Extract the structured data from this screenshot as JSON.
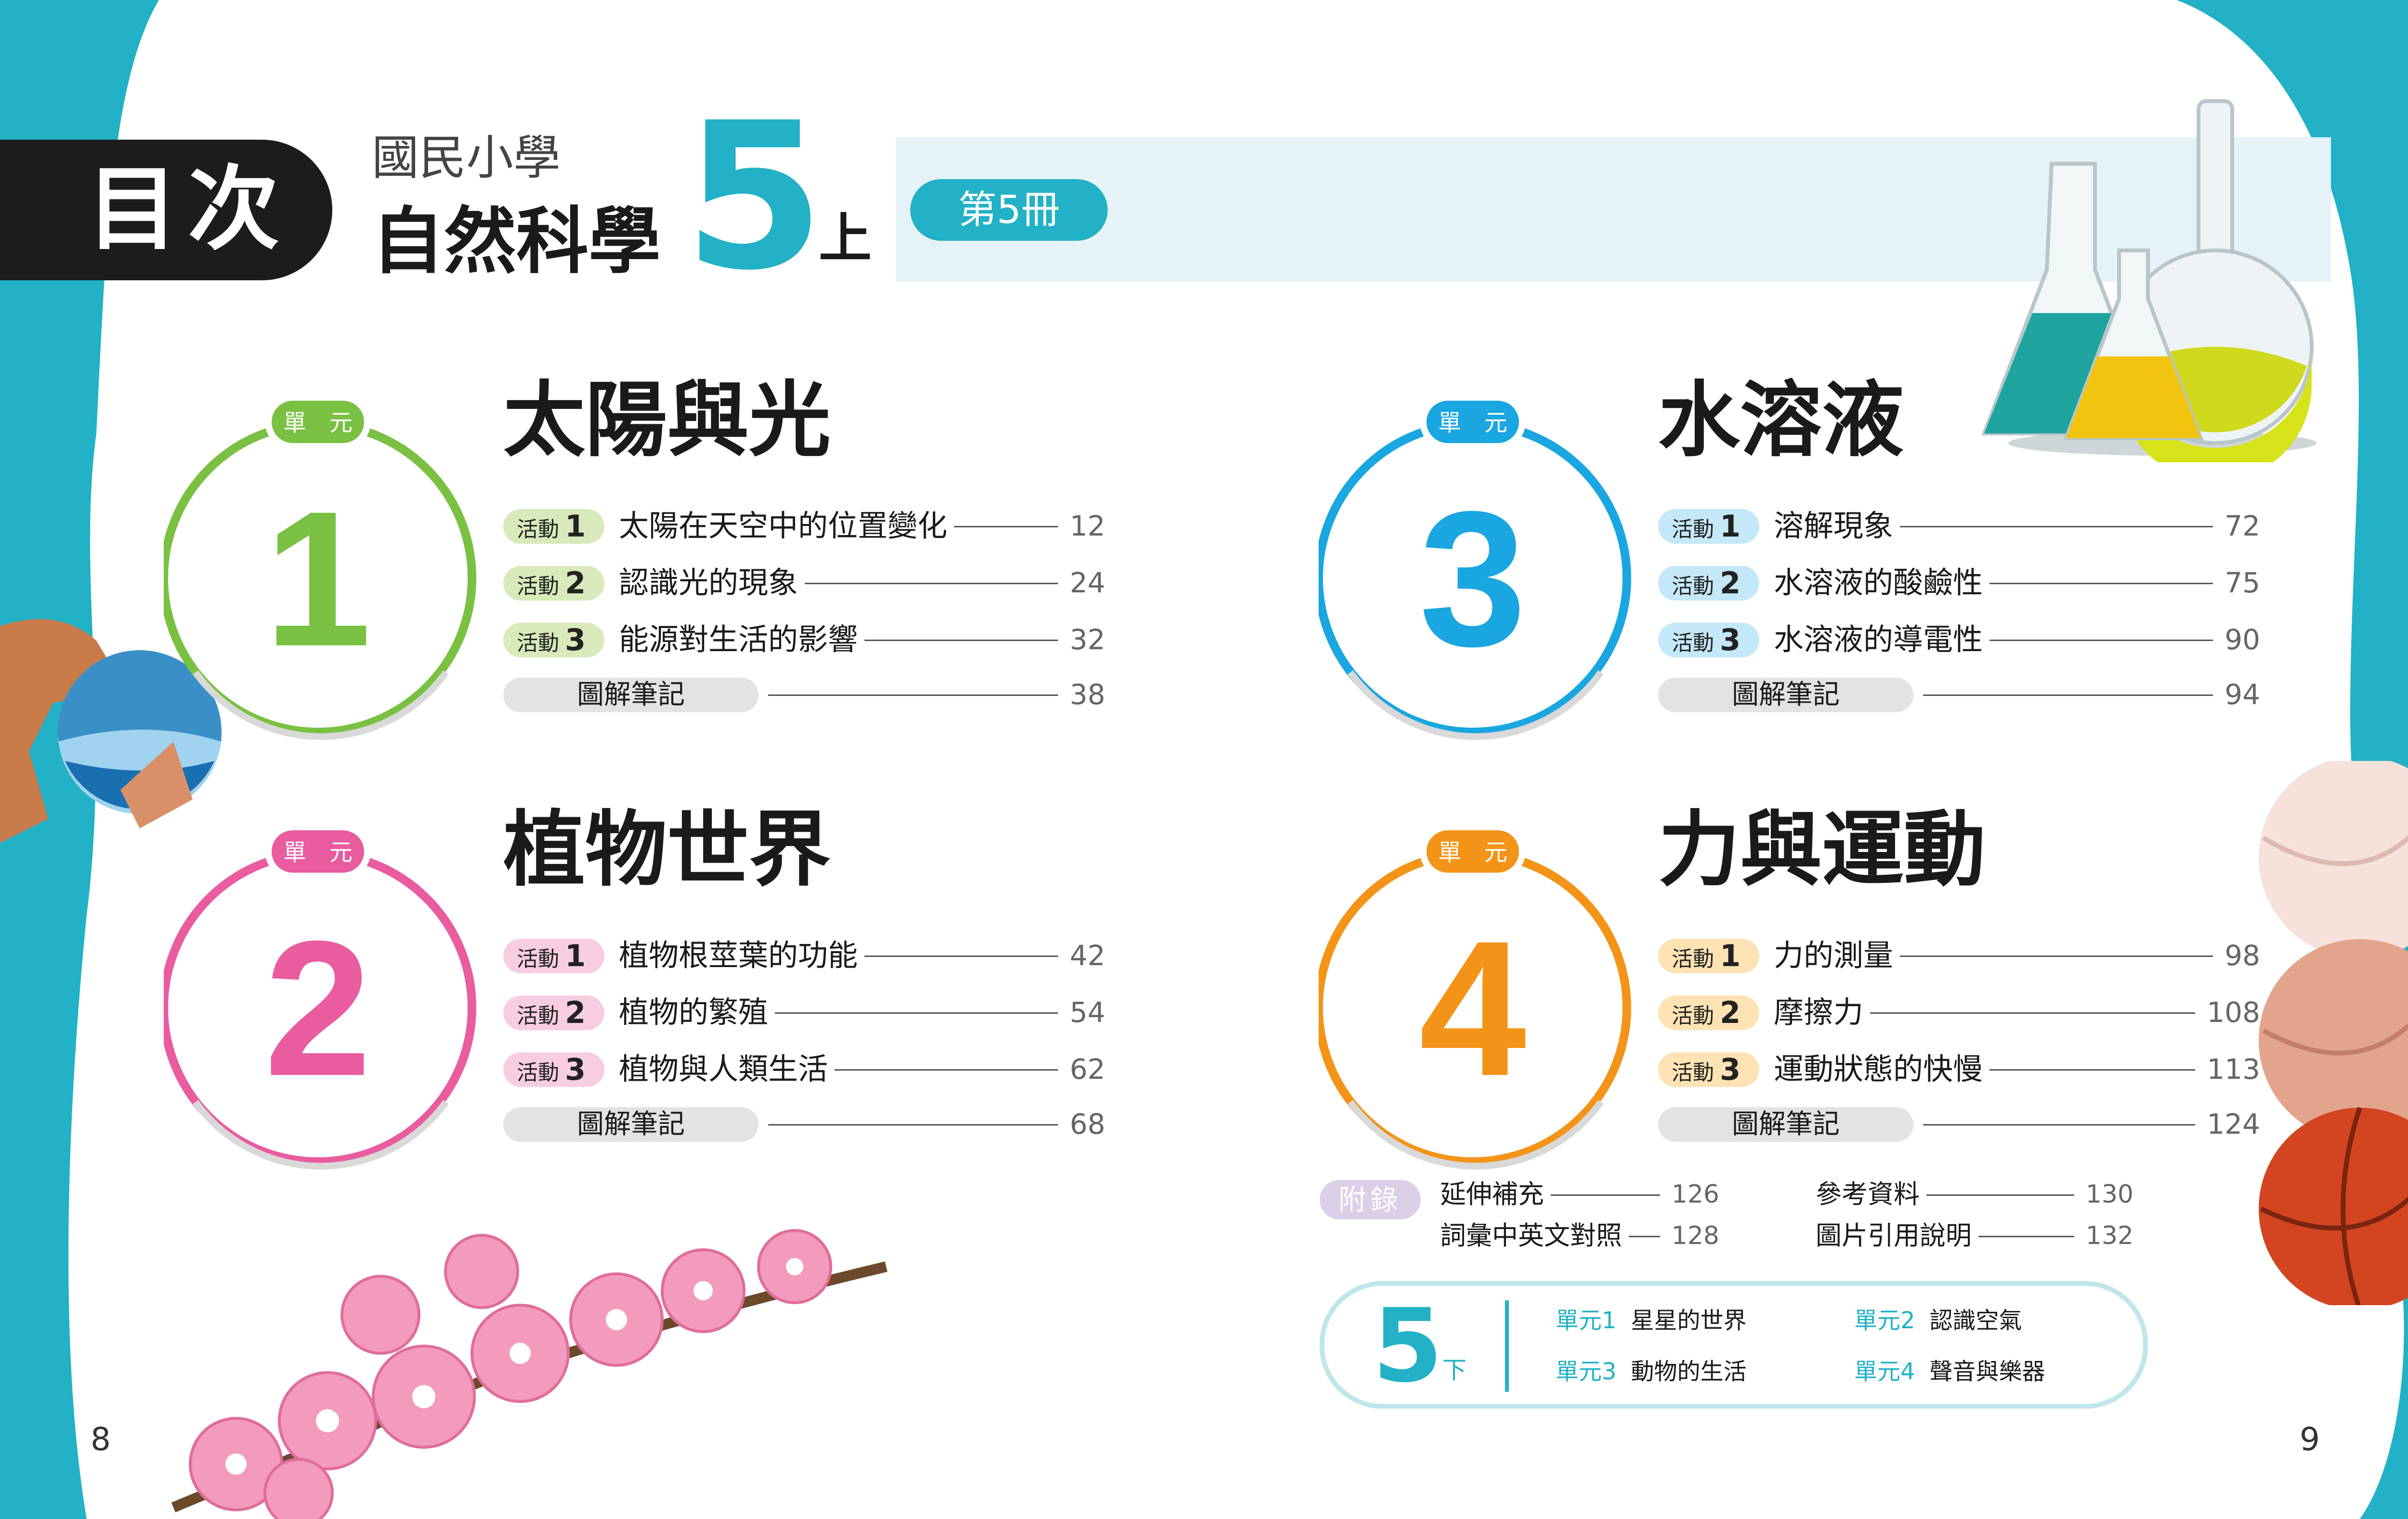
{
  "header": {
    "mulu": "目次",
    "school": "國民小學",
    "subject": "自然科學",
    "grade_number": "5",
    "grade_half": "上",
    "volume": "第5冊"
  },
  "units": [
    {
      "badge": "單　元",
      "number": "1",
      "title": "太陽與光",
      "color": "#7ac143",
      "pill_color": "#d8eabb",
      "activities": [
        {
          "label": "活動",
          "num": "1",
          "title": "太陽在天空中的位置變化",
          "page": "12"
        },
        {
          "label": "活動",
          "num": "2",
          "title": "認識光的現象",
          "page": "24"
        },
        {
          "label": "活動",
          "num": "3",
          "title": "能源對生活的影響",
          "page": "32"
        }
      ],
      "notes": {
        "title": "圖解筆記",
        "page": "38"
      }
    },
    {
      "badge": "單　元",
      "number": "2",
      "title": "植物世界",
      "color": "#e95ca0",
      "pill_color": "#f7cde2",
      "activities": [
        {
          "label": "活動",
          "num": "1",
          "title": "植物根莖葉的功能",
          "page": "42"
        },
        {
          "label": "活動",
          "num": "2",
          "title": "植物的繁殖",
          "page": "54"
        },
        {
          "label": "活動",
          "num": "3",
          "title": "植物與人類生活",
          "page": "62"
        }
      ],
      "notes": {
        "title": "圖解筆記",
        "page": "68"
      }
    },
    {
      "badge": "單　元",
      "number": "3",
      "title": "水溶液",
      "color": "#1aa6e0",
      "pill_color": "#c4e8f7",
      "activities": [
        {
          "label": "活動",
          "num": "1",
          "title": "溶解現象",
          "page": "72"
        },
        {
          "label": "活動",
          "num": "2",
          "title": "水溶液的酸鹼性",
          "page": "75"
        },
        {
          "label": "活動",
          "num": "3",
          "title": "水溶液的導電性",
          "page": "90"
        }
      ],
      "notes": {
        "title": "圖解筆記",
        "page": "94"
      }
    },
    {
      "badge": "單　元",
      "number": "4",
      "title": "力與運動",
      "color": "#f39419",
      "pill_color": "#fde3b3",
      "activities": [
        {
          "label": "活動",
          "num": "1",
          "title": "力的測量",
          "page": "98"
        },
        {
          "label": "活動",
          "num": "2",
          "title": "摩擦力",
          "page": "108"
        },
        {
          "label": "活動",
          "num": "3",
          "title": "運動狀態的快慢",
          "page": "113"
        }
      ],
      "notes": {
        "title": "圖解筆記",
        "page": "124"
      }
    }
  ],
  "appendix": {
    "label": "附錄",
    "items": [
      {
        "title": "延伸補充",
        "page": "126"
      },
      {
        "title": "參考資料",
        "page": "130"
      },
      {
        "title": "詞彙中英文對照",
        "page": "128"
      },
      {
        "title": "圖片引用說明",
        "page": "132"
      }
    ]
  },
  "next_volume": {
    "number": "5",
    "half": "下",
    "units": [
      {
        "unit": "單元1",
        "title": "星星的世界"
      },
      {
        "unit": "單元2",
        "title": "認識空氣"
      },
      {
        "unit": "單元3",
        "title": "動物的生活"
      },
      {
        "unit": "單元4",
        "title": "聲音與樂器"
      }
    ]
  },
  "page_numbers": {
    "left": "8",
    "right": "9"
  },
  "colors": {
    "teal": "#22b1c6",
    "dark": "#1c1c1c"
  }
}
